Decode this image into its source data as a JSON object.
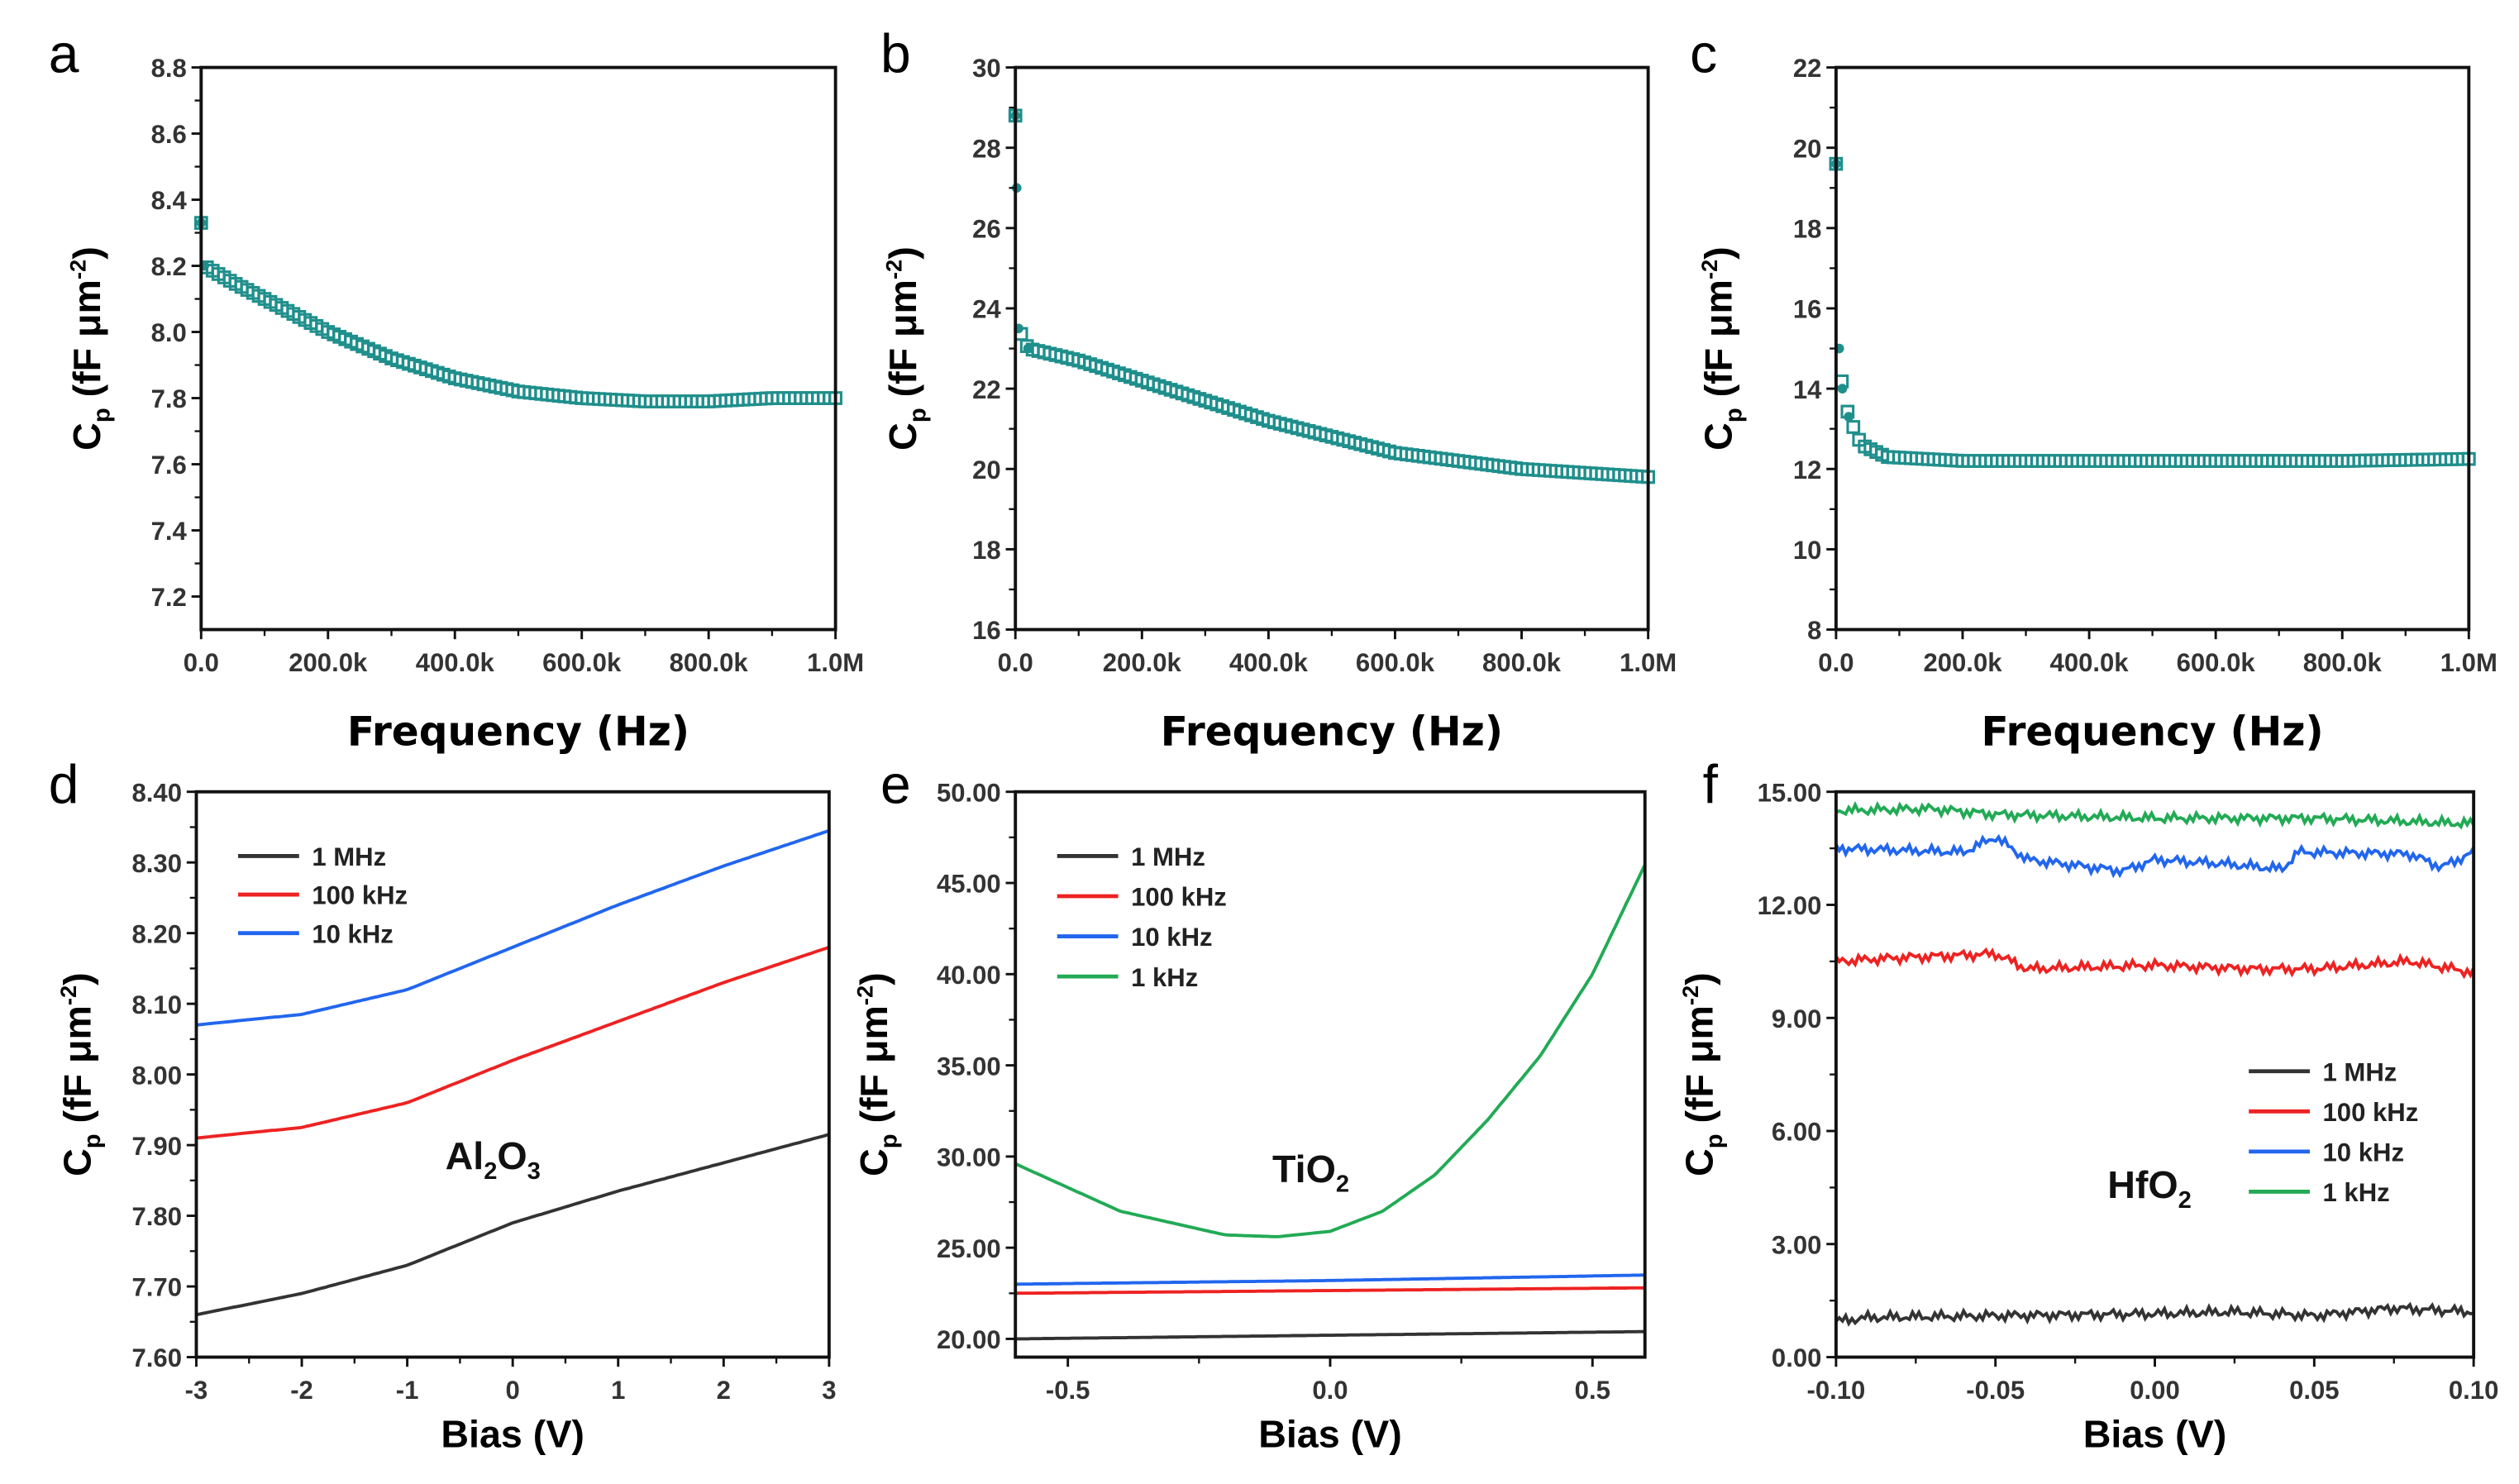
{
  "colors": {
    "teal": "#1f8f8c",
    "black": "#333333",
    "red": "#ee2222",
    "blue": "#2266ee",
    "green": "#22aa55"
  },
  "ylabel_parts": {
    "main": "C",
    "sub": "p",
    "unit": " (fF μm",
    "sup": "-2",
    "close": ")"
  },
  "chart_data": [
    {
      "panel": "a",
      "type": "scatter",
      "xlabel": "Frequency (Hz)",
      "xlim": [
        0,
        1000000
      ],
      "ylim": [
        7.1,
        8.8
      ],
      "xticks": [
        0,
        200000,
        400000,
        600000,
        800000,
        1000000
      ],
      "xtick_labels": [
        "0.0",
        "200.0k",
        "400.0k",
        "600.0k",
        "800.0k",
        "1.0M"
      ],
      "yticks": [
        7.2,
        7.4,
        7.6,
        7.8,
        8.0,
        8.2,
        8.4,
        8.6,
        8.8
      ],
      "ytick_labels": [
        "7.2",
        "7.4",
        "7.6",
        "7.8",
        "8.0",
        "8.2",
        "8.4",
        "8.6",
        "8.8"
      ],
      "series": [
        {
          "name": "Cp",
          "color": "teal",
          "x": [
            0,
            5000,
            50000,
            100000,
            200000,
            300000,
            400000,
            500000,
            600000,
            700000,
            800000,
            900000,
            1000000
          ],
          "y": [
            8.33,
            8.2,
            8.15,
            8.1,
            8.0,
            7.92,
            7.86,
            7.82,
            7.8,
            7.79,
            7.79,
            7.8,
            7.8
          ]
        }
      ]
    },
    {
      "panel": "b",
      "type": "scatter",
      "xlabel": "Frequency (Hz)",
      "xlim": [
        0,
        1000000
      ],
      "ylim": [
        16,
        30
      ],
      "xticks": [
        0,
        200000,
        400000,
        600000,
        800000,
        1000000
      ],
      "xtick_labels": [
        "0.0",
        "200.0k",
        "400.0k",
        "600.0k",
        "800.0k",
        "1.0M"
      ],
      "yticks": [
        16,
        18,
        20,
        22,
        24,
        26,
        28,
        30
      ],
      "ytick_labels": [
        "16",
        "18",
        "20",
        "22",
        "24",
        "26",
        "28",
        "30"
      ],
      "series": [
        {
          "name": "Cp",
          "color": "teal",
          "x": [
            0,
            2000,
            5000,
            20000,
            100000,
            200000,
            300000,
            400000,
            500000,
            600000,
            700000,
            800000,
            900000,
            1000000
          ],
          "y": [
            28.8,
            27.0,
            23.5,
            23.0,
            22.7,
            22.2,
            21.7,
            21.2,
            20.8,
            20.4,
            20.2,
            20.0,
            19.9,
            19.8
          ]
        }
      ]
    },
    {
      "panel": "c",
      "type": "scatter",
      "xlabel": "Frequency (Hz)",
      "xlim": [
        0,
        1000000
      ],
      "ylim": [
        8,
        22
      ],
      "xticks": [
        0,
        200000,
        400000,
        600000,
        800000,
        1000000
      ],
      "xtick_labels": [
        "0.0",
        "200.0k",
        "400.0k",
        "600.0k",
        "800.0k",
        "1.0M"
      ],
      "yticks": [
        8,
        10,
        12,
        14,
        16,
        18,
        20,
        22
      ],
      "ytick_labels": [
        "8",
        "10",
        "12",
        "14",
        "16",
        "18",
        "20",
        "22"
      ],
      "series": [
        {
          "name": "Cp",
          "color": "teal",
          "x": [
            0,
            5000,
            10000,
            20000,
            40000,
            80000,
            200000,
            400000,
            600000,
            800000,
            1000000
          ],
          "y": [
            19.6,
            15.0,
            14.0,
            13.3,
            12.6,
            12.3,
            12.2,
            12.2,
            12.2,
            12.2,
            12.25
          ]
        }
      ]
    },
    {
      "panel": "d",
      "type": "line",
      "xlabel": "Bias (V)",
      "material": [
        "Al",
        "2",
        "O",
        "3"
      ],
      "xlim": [
        -3,
        3
      ],
      "ylim": [
        7.6,
        8.4
      ],
      "xticks": [
        -3,
        -2,
        -1,
        0,
        1,
        2,
        3
      ],
      "xtick_labels": [
        "-3",
        "-2",
        "-1",
        "0",
        "1",
        "2",
        "3"
      ],
      "yticks": [
        7.6,
        7.7,
        7.8,
        7.9,
        8.0,
        8.1,
        8.2,
        8.3,
        8.4
      ],
      "ytick_labels": [
        "7.60",
        "7.70",
        "7.80",
        "7.90",
        "8.00",
        "8.10",
        "8.20",
        "8.30",
        "8.40"
      ],
      "legend": "top-left",
      "series": [
        {
          "name": "1 MHz",
          "color": "black",
          "x": [
            -3,
            -2,
            -1,
            0,
            1,
            2,
            3
          ],
          "y": [
            7.66,
            7.69,
            7.73,
            7.79,
            7.835,
            7.875,
            7.915
          ]
        },
        {
          "name": "100 kHz",
          "color": "red",
          "x": [
            -3,
            -2,
            -1,
            0,
            1,
            2,
            3
          ],
          "y": [
            7.91,
            7.925,
            7.96,
            8.02,
            8.075,
            8.13,
            8.18
          ]
        },
        {
          "name": "10 kHz",
          "color": "blue",
          "x": [
            -3,
            -2,
            -1,
            0,
            1,
            2,
            3
          ],
          "y": [
            8.07,
            8.085,
            8.12,
            8.18,
            8.24,
            8.295,
            8.345
          ]
        }
      ]
    },
    {
      "panel": "e",
      "type": "line",
      "xlabel": "Bias (V)",
      "material": [
        "Ti",
        "",
        "O",
        "2"
      ],
      "xlim": [
        -0.6,
        0.6
      ],
      "ylim": [
        19,
        50
      ],
      "xticks": [
        -0.5,
        0,
        0.5
      ],
      "xtick_labels": [
        "-0.5",
        "0.0",
        "0.5"
      ],
      "yticks": [
        20,
        25,
        30,
        35,
        40,
        45,
        50
      ],
      "ytick_labels": [
        "20.00",
        "25.00",
        "30.00",
        "35.00",
        "40.00",
        "45.00",
        "50.00"
      ],
      "legend": "top-left",
      "series": [
        {
          "name": "1 MHz",
          "color": "black",
          "x": [
            -0.6,
            0,
            0.6
          ],
          "y": [
            20.0,
            20.2,
            20.4
          ]
        },
        {
          "name": "100 kHz",
          "color": "red",
          "x": [
            -0.6,
            0,
            0.6
          ],
          "y": [
            22.5,
            22.65,
            22.8
          ]
        },
        {
          "name": "10 kHz",
          "color": "blue",
          "x": [
            -0.6,
            0,
            0.6
          ],
          "y": [
            23.0,
            23.2,
            23.5
          ]
        },
        {
          "name": "1 kHz",
          "color": "green",
          "x": [
            -0.6,
            -0.4,
            -0.2,
            -0.1,
            0,
            0.1,
            0.2,
            0.3,
            0.4,
            0.5,
            0.6
          ],
          "y": [
            29.6,
            27.0,
            25.7,
            25.6,
            25.9,
            27.0,
            29.0,
            32.0,
            35.5,
            40.0,
            46.0
          ]
        }
      ]
    },
    {
      "panel": "f",
      "type": "line",
      "xlabel": "Bias (V)",
      "material": [
        "Hf",
        "",
        "O",
        "2"
      ],
      "xlim": [
        -0.1,
        0.1
      ],
      "ylim": [
        0,
        15
      ],
      "xticks": [
        -0.1,
        -0.05,
        0,
        0.05,
        0.1
      ],
      "xtick_labels": [
        "-0.10",
        "-0.05",
        "0.00",
        "0.05",
        "0.10"
      ],
      "yticks": [
        0,
        3,
        6,
        9,
        12,
        15
      ],
      "ytick_labels": [
        "0.00",
        "3.00",
        "6.00",
        "9.00",
        "12.00",
        "15.00"
      ],
      "legend": "center-right",
      "series": [
        {
          "name": "1 MHz",
          "color": "black",
          "x": [
            -0.1,
            -0.09,
            -0.05,
            0,
            0.025,
            0.05,
            0.075,
            0.1
          ],
          "y": [
            0.95,
            1.05,
            1.1,
            1.15,
            1.2,
            1.1,
            1.3,
            1.2
          ]
        },
        {
          "name": "100 kHz",
          "color": "red",
          "x": [
            -0.1,
            -0.08,
            -0.05,
            -0.04,
            0,
            0.03,
            0.05,
            0.08,
            0.1
          ],
          "y": [
            10.5,
            10.6,
            10.7,
            10.3,
            10.4,
            10.3,
            10.3,
            10.5,
            10.2
          ]
        },
        {
          "name": "10 kHz",
          "color": "blue",
          "x": [
            -0.1,
            -0.06,
            -0.05,
            -0.04,
            -0.01,
            0,
            0.02,
            0.04,
            0.045,
            0.08,
            0.09,
            0.1
          ],
          "y": [
            13.5,
            13.4,
            13.8,
            13.2,
            12.9,
            13.2,
            13.1,
            12.95,
            13.4,
            13.35,
            13.0,
            13.4
          ]
        },
        {
          "name": "1 kHz",
          "color": "green",
          "x": [
            -0.1,
            -0.07,
            -0.05,
            0,
            0.05,
            0.1
          ],
          "y": [
            14.5,
            14.55,
            14.4,
            14.3,
            14.3,
            14.15
          ]
        }
      ]
    }
  ]
}
